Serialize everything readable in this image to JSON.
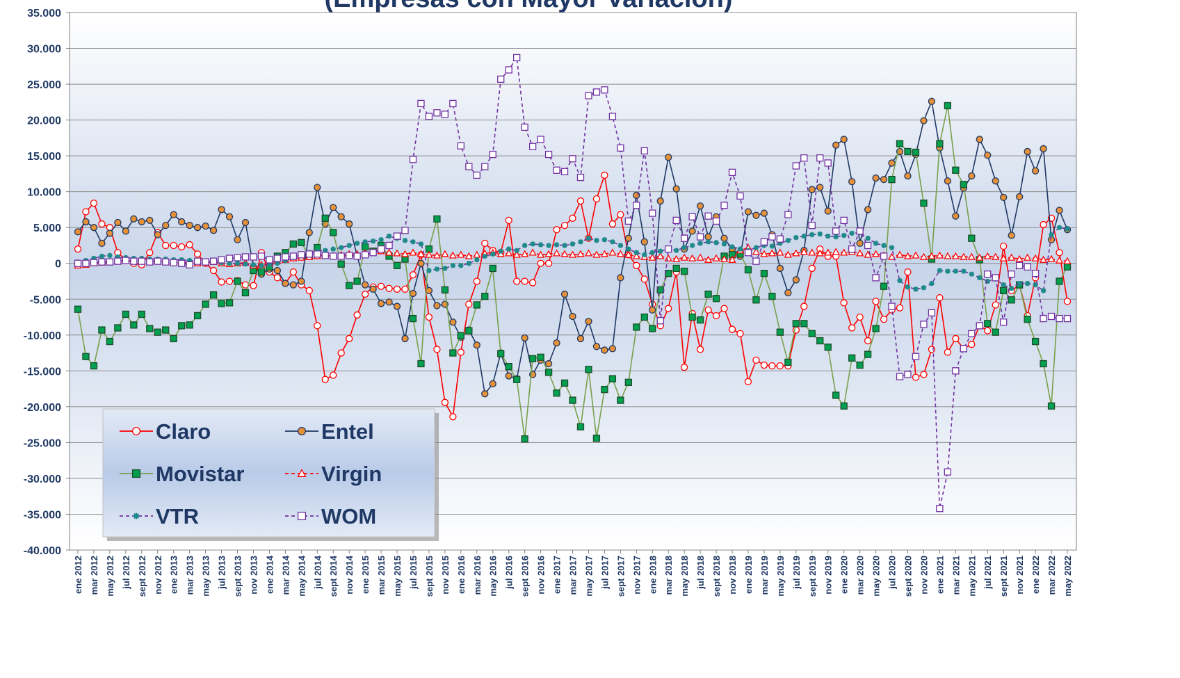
{
  "chart_data": {
    "type": "line",
    "title": "(Empresas con Mayor Variación)",
    "categories": [
      "ene 2012",
      null,
      "mar 2012",
      null,
      "may 2012",
      null,
      "jul 2012",
      null,
      "sept 2012",
      null,
      "nov 2012",
      null,
      "ene 2013",
      null,
      "mar 2013",
      null,
      "may 2013",
      null,
      "jul 2013",
      null,
      "sept 2013",
      null,
      "nov 2013",
      null,
      "ene 2014",
      null,
      "mar 2014",
      null,
      "may 2014",
      null,
      "jul 2014",
      null,
      "sept 2014",
      null,
      "nov 2014",
      null,
      "ene 2015",
      null,
      "mar 2015",
      null,
      "may 2015",
      null,
      "jul 2015",
      null,
      "sept 2015",
      null,
      "nov 2015",
      null,
      "ene 2016",
      null,
      "mar 2016",
      null,
      "may 2016",
      null,
      "jul 2016",
      null,
      "sept 2016",
      null,
      "nov 2016",
      null,
      "ene 2017",
      null,
      "mar 2017",
      null,
      "may 2017",
      null,
      "jul 2017",
      null,
      "sept 2017",
      null,
      "nov 2017",
      null,
      "ene 2018",
      null,
      "mar 2018",
      null,
      "may 2018",
      null,
      "jul 2018",
      null,
      "sept 2018",
      null,
      "nov 2018",
      null,
      "ene 2019",
      null,
      "mar 2019",
      null,
      "may 2019",
      null,
      "jul 2019",
      null,
      "sept 2019",
      null,
      "nov 2019",
      null,
      "ene 2020",
      null,
      "mar 2020",
      null,
      "may 2020",
      null,
      "jul 2020",
      null,
      "sept 2020",
      null,
      "nov 2020",
      null,
      "ene 2021",
      null,
      "mar 2021",
      null,
      "may 2021",
      null,
      "jul 2021",
      null,
      "sept 2021",
      null,
      "nov 2021",
      null,
      "ene 2022",
      null,
      "mar 2022",
      null,
      "may 2022"
    ],
    "series": [
      {
        "name": "Claro",
        "color": "#ff0000",
        "marker": "circle",
        "marker_color": "#ffffff",
        "dashed": false,
        "values": [
          2000,
          7200,
          8400,
          5500,
          5000,
          1500,
          500,
          0,
          -200,
          1500,
          4300,
          2500,
          2500,
          2300,
          2600,
          1300,
          0,
          -1000,
          -2600,
          -2500,
          -2400,
          -3000,
          -3100,
          1500,
          -1200,
          -2000,
          -2800,
          -1200,
          -3000,
          -3800,
          -8700,
          -16200,
          -15600,
          -12500,
          -10500,
          -7200,
          -4300,
          -3300,
          -3200,
          -3500,
          -3600,
          -3600,
          -1600,
          1200,
          -7500,
          -12000,
          -19400,
          -21400,
          -12400,
          -5700,
          -2500,
          2800,
          1800,
          1500,
          6000,
          -2500,
          -2500,
          -2700,
          0,
          0,
          4700,
          5300,
          6300,
          8700,
          3500,
          9000,
          12300,
          5500,
          6800,
          1200,
          -300,
          -2200,
          -5700,
          -8700,
          -6300,
          -1200,
          -14500,
          -7000,
          -12000,
          -6500,
          -7300,
          -6300,
          -9200,
          -9800,
          -16500,
          -13500,
          -14200,
          -14300,
          -14300,
          -14300,
          -9300,
          -6000,
          -700,
          2000,
          1000,
          1000,
          -5500,
          -9000,
          -7500,
          -10800,
          -5300,
          -7800,
          -6500,
          -6200,
          -1200,
          -15900,
          -15500,
          -12000,
          -4800,
          -12400,
          -10500,
          -11900,
          -11300,
          -8700,
          -9400,
          -5800,
          2400,
          -3800,
          -3000,
          -7300,
          -2000,
          5400,
          6300,
          1500,
          -5300
        ]
      },
      {
        "name": "Entel",
        "color": "#1f3864",
        "marker": "circle",
        "marker_color": "#e69138",
        "dashed": false,
        "values": [
          4400,
          5800,
          5000,
          2800,
          4200,
          5700,
          4500,
          6200,
          5800,
          6000,
          4000,
          5300,
          6800,
          5800,
          5300,
          5000,
          5200,
          4600,
          7500,
          6500,
          3300,
          5700,
          -500,
          -1500,
          -800,
          -1000,
          -2800,
          -3000,
          -2500,
          4300,
          10600,
          5500,
          7800,
          6500,
          5500,
          1000,
          -3000,
          -3600,
          -5600,
          -5400,
          -6000,
          -10500,
          -4200,
          0,
          -3800,
          -5900,
          -5700,
          -8200,
          -10300,
          -9300,
          -11400,
          -18200,
          -16800,
          -12500,
          -15700,
          -16100,
          -10400,
          -15500,
          -13500,
          -14000,
          -11100,
          -4300,
          -7400,
          -10500,
          -8100,
          -11600,
          -12100,
          -11900,
          -2000,
          3500,
          9500,
          3000,
          -6500,
          8700,
          14800,
          10400,
          2000,
          4500,
          8000,
          3700,
          6500,
          3500,
          2000,
          1000,
          7200,
          6700,
          7000,
          4000,
          -700,
          -4100,
          -2300,
          1800,
          10300,
          10600,
          7300,
          16500,
          17300,
          11400,
          2800,
          7500,
          11900,
          11700,
          14000,
          15600,
          12200,
          15200,
          19900,
          22600,
          16100,
          11500,
          6600,
          10500,
          12200,
          17300,
          15100,
          11500,
          9200,
          3900,
          9300,
          15600,
          12900,
          16000,
          3300,
          7400,
          4700
        ]
      },
      {
        "name": "Movistar",
        "color": "#77a04a",
        "marker": "square",
        "marker_color": "#00a050",
        "dashed": false,
        "values": [
          -6400,
          -13000,
          -14300,
          -9300,
          -10900,
          -9000,
          -7100,
          -8600,
          -7100,
          -9100,
          -9600,
          -9300,
          -10500,
          -8700,
          -8600,
          -7300,
          -5700,
          -4400,
          -5600,
          -5500,
          -2500,
          -4100,
          -1000,
          -1200,
          -500,
          1000,
          1500,
          2700,
          2900,
          1000,
          2200,
          6300,
          4300,
          -100,
          -3100,
          -2500,
          2300,
          1700,
          2500,
          1000,
          -300,
          600,
          -7700,
          -14000,
          2000,
          6200,
          -3700,
          -12500,
          -10100,
          -9400,
          -5800,
          -4600,
          -700,
          -12600,
          -14400,
          -16200,
          -24500,
          -13300,
          -13100,
          -15200,
          -18100,
          -16700,
          -19100,
          -22800,
          -14800,
          -24400,
          -17600,
          -16100,
          -19100,
          -16600,
          -8900,
          -7500,
          -9100,
          -3700,
          -1400,
          -700,
          -1100,
          -7500,
          -7900,
          -4300,
          -4900,
          1000,
          1200,
          1300,
          -900,
          -5100,
          -1400,
          -4600,
          -9600,
          -13800,
          -8400,
          -8400,
          -9800,
          -10800,
          -11700,
          -18400,
          -19900,
          -13200,
          -14200,
          -12700,
          -9100,
          -3200,
          11700,
          16700,
          15600,
          15500,
          8400,
          600,
          16700,
          22000,
          13000,
          11000,
          3500,
          500,
          -8400,
          -9600,
          -3800,
          -5100,
          -3000,
          -7800,
          -10900,
          -14000,
          -19900,
          -2500,
          -500
        ]
      },
      {
        "name": "Virgin",
        "color": "#ff0000",
        "marker": "triangle",
        "marker_color": "#ffffff",
        "dashed": true,
        "values": [
          -300,
          -200,
          0,
          100,
          200,
          300,
          400,
          300,
          300,
          300,
          300,
          200,
          200,
          100,
          100,
          0,
          100,
          200,
          0,
          -100,
          0,
          100,
          -300,
          -200,
          0,
          300,
          500,
          700,
          800,
          900,
          1000,
          1100,
          1000,
          1200,
          1300,
          1300,
          1400,
          1600,
          1700,
          1500,
          1400,
          1300,
          1500,
          1300,
          1200,
          1100,
          1300,
          1100,
          1200,
          1000,
          1200,
          1400,
          1500,
          1300,
          1400,
          1200,
          1300,
          1500,
          1200,
          1300,
          1400,
          1300,
          1200,
          1300,
          1400,
          1200,
          1300,
          1500,
          1300,
          1200,
          1000,
          900,
          800,
          1000,
          700,
          600,
          800,
          700,
          800,
          500,
          700,
          600,
          500,
          1800,
          2200,
          1600,
          1300,
          1400,
          1500,
          1200,
          1400,
          1600,
          1500,
          1400,
          1500,
          1600,
          1500,
          1600,
          1400,
          1200,
          1300,
          1100,
          900,
          1200,
          1000,
          1100,
          900,
          1000,
          1100,
          1000,
          1000,
          900,
          900,
          800,
          1000,
          900,
          700,
          800,
          600,
          800,
          700,
          500,
          600,
          400,
          300
        ]
      },
      {
        "name": "VTR",
        "color": "#7030a0",
        "marker": "star",
        "marker_color": "#1f8a8a",
        "dashed": true,
        "values": [
          200,
          400,
          700,
          1000,
          1100,
          900,
          800,
          700,
          700,
          600,
          600,
          600,
          500,
          500,
          400,
          300,
          200,
          200,
          100,
          0,
          0,
          -100,
          -200,
          -300,
          -200,
          0,
          400,
          800,
          1300,
          1500,
          1700,
          1800,
          2000,
          2200,
          2500,
          2800,
          3000,
          3100,
          3300,
          3800,
          3500,
          3200,
          3000,
          2700,
          -1000,
          -800,
          -700,
          -300,
          -300,
          0,
          500,
          1000,
          1300,
          1700,
          2000,
          1800,
          2500,
          2700,
          2600,
          2500,
          2600,
          2500,
          2700,
          3000,
          3500,
          3200,
          3300,
          3000,
          2500,
          2000,
          1500,
          1200,
          1500,
          1700,
          2000,
          1800,
          2200,
          2500,
          2800,
          3000,
          2900,
          2700,
          2300,
          2000,
          1800,
          2200,
          2500,
          2400,
          2800,
          3200,
          3600,
          3800,
          4000,
          4100,
          3800,
          3700,
          3900,
          4200,
          4300,
          3500,
          2800,
          2500,
          2200,
          -2400,
          -3300,
          -3600,
          -3400,
          -2800,
          -1000,
          -1100,
          -1100,
          -1100,
          -1500,
          -2000,
          -2500,
          -2200,
          -3000,
          -3500,
          -2800,
          -2800,
          -3000,
          -3800,
          4000,
          5000,
          4800
        ]
      },
      {
        "name": "WOM",
        "color": "#7030a0",
        "marker": "square",
        "marker_color": "#ffffff",
        "dashed": true,
        "values": [
          0,
          0,
          100,
          200,
          200,
          300,
          400,
          300,
          300,
          200,
          300,
          200,
          100,
          0,
          -200,
          300,
          200,
          300,
          500,
          700,
          800,
          900,
          900,
          1000,
          500,
          700,
          900,
          1000,
          1200,
          1300,
          1300,
          1100,
          1000,
          1000,
          1100,
          1000,
          1200,
          1500,
          2000,
          2500,
          3800,
          4600,
          14500,
          22300,
          20500,
          21000,
          20800,
          22300,
          16400,
          13500,
          12300,
          13500,
          15200,
          25700,
          27000,
          28700,
          19000,
          16300,
          17300,
          15200,
          13000,
          12800,
          14600,
          12000,
          23400,
          23900,
          24200,
          20500,
          16100,
          5900,
          8100,
          15700,
          7000,
          -8000,
          2000,
          6000,
          3500,
          6500,
          3700,
          6600,
          5900,
          8100,
          12700,
          9400,
          1500,
          300,
          3000,
          3700,
          3400,
          6800,
          13600,
          14700,
          5300,
          14700,
          14000,
          4500,
          6000,
          2000,
          4500,
          2500,
          -2000,
          1000,
          -6000,
          -15800,
          -15500,
          -13000,
          -8500,
          -6900,
          -34200,
          -29100,
          -15000,
          -11900,
          -9800,
          -8700,
          -1500,
          -2000,
          -8200,
          -1500,
          -300,
          -500,
          -1400,
          -7700,
          -7400,
          -7700,
          -7700
        ]
      }
    ],
    "ylim": [
      -40000,
      35000
    ],
    "yticks": [
      {
        "value": -40000,
        "label": "-40.000"
      },
      {
        "value": -35000,
        "label": "-35.000"
      },
      {
        "value": -30000,
        "label": "-30.000"
      },
      {
        "value": -25000,
        "label": "-25.000"
      },
      {
        "value": -20000,
        "label": "-20.000"
      },
      {
        "value": -15000,
        "label": "-15.000"
      },
      {
        "value": -10000,
        "label": "-10.000"
      },
      {
        "value": -5000,
        "label": "-5.000"
      },
      0,
      {
        "value": 5000,
        "label": "5.000"
      },
      {
        "value": 10000,
        "label": "10.000"
      },
      {
        "value": 15000,
        "label": "15.000"
      },
      {
        "value": 20000,
        "label": "20.000"
      },
      {
        "value": 25000,
        "label": "25.000"
      },
      {
        "value": 30000,
        "label": "30.000"
      },
      {
        "value": 35000,
        "label": "35.000"
      }
    ],
    "grid": true,
    "legend": "lower left"
  }
}
